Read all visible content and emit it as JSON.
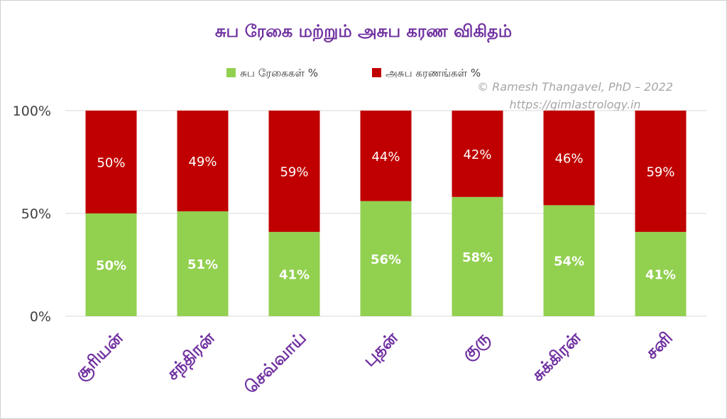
{
  "chart_data": {
    "type": "bar",
    "stacked": true,
    "percent_stacked": true,
    "title": "சுப ரேகை மற்றும் அசுப கரண விகிதம்",
    "categories": [
      "சூரியன்",
      "சந்திரன்",
      "செவ்வாய்",
      "புதன்",
      "குரு",
      "சுக்கிரன்",
      "சனி"
    ],
    "series": [
      {
        "name": "சுப ரேகைகள் %",
        "color": "#92d050",
        "values": [
          50,
          51,
          41,
          56,
          58,
          54,
          41
        ],
        "labels": [
          "50%",
          "51%",
          "41%",
          "56%",
          "58%",
          "54%",
          "41%"
        ]
      },
      {
        "name": "அசுப கரணங்கள் %",
        "color": "#c00000",
        "values": [
          50,
          49,
          59,
          44,
          42,
          46,
          59
        ],
        "labels": [
          "50%",
          "49%",
          "59%",
          "44%",
          "42%",
          "46%",
          "59%"
        ]
      }
    ],
    "y_ticks": [
      "0%",
      "50%",
      "100%"
    ],
    "ylim": [
      0,
      100
    ],
    "grid": true,
    "legend_position": "top",
    "watermark": [
      "© Ramesh Thangavel, PhD – 2022",
      "https://gimlastrology.in"
    ],
    "colors": {
      "title": "#7030a0",
      "category_labels": "#7030a0",
      "axis_text": "#404040",
      "gridline": "#d9d9d9",
      "watermark": "#a6a6a6"
    }
  }
}
